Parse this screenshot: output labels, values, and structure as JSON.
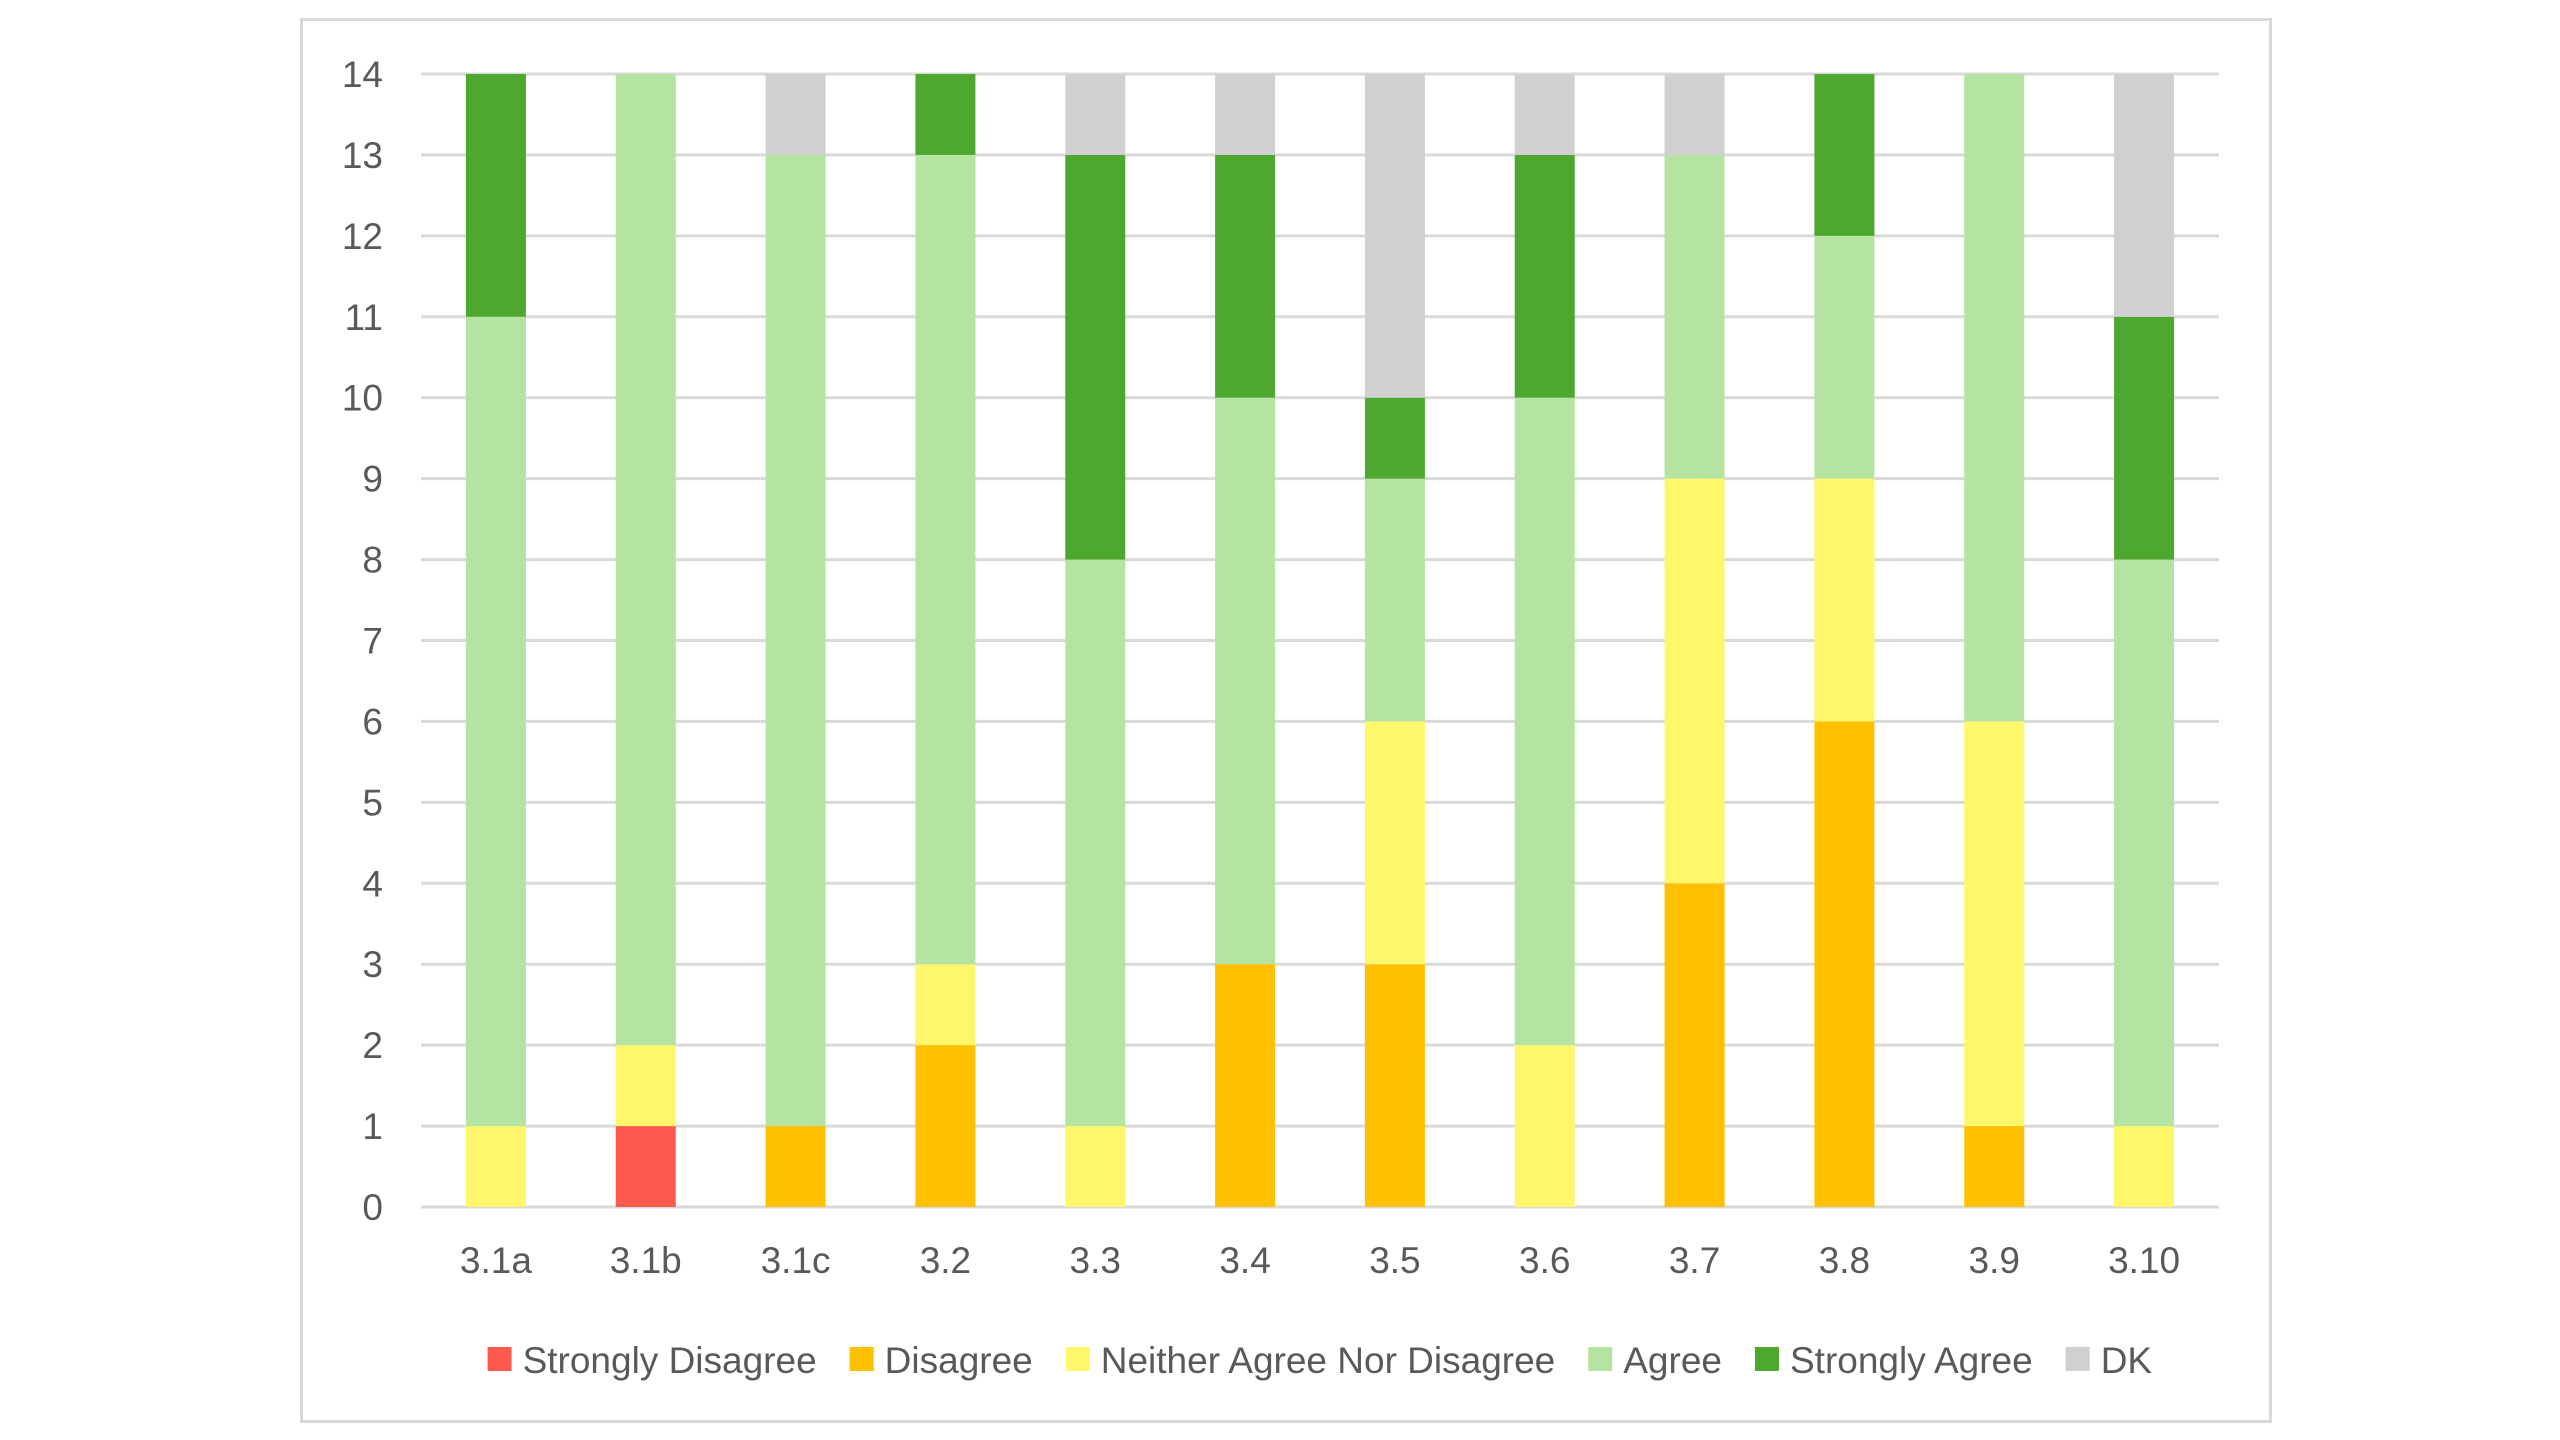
{
  "chart_data": {
    "type": "bar",
    "stacked": true,
    "categories": [
      "3.1a",
      "3.1b",
      "3.1c",
      "3.2",
      "3.3",
      "3.4",
      "3.5",
      "3.6",
      "3.7",
      "3.8",
      "3.9",
      "3.10"
    ],
    "series": [
      {
        "name": "Strongly Disagree",
        "color": "#ff5a4e",
        "values": [
          0,
          1,
          0,
          0,
          0,
          0,
          0,
          0,
          0,
          0,
          0,
          0
        ]
      },
      {
        "name": "Disagree",
        "color": "#ffc000",
        "values": [
          0,
          0,
          1,
          2,
          0,
          3,
          3,
          0,
          4,
          6,
          1,
          0
        ]
      },
      {
        "name": "Neither Agree Nor Disagree",
        "color": "#fff76b",
        "values": [
          1,
          1,
          0,
          1,
          1,
          0,
          3,
          2,
          5,
          3,
          5,
          1
        ]
      },
      {
        "name": "Agree",
        "color": "#b5e4a2",
        "values": [
          10,
          12,
          12,
          10,
          7,
          7,
          3,
          8,
          4,
          3,
          8,
          7
        ]
      },
      {
        "name": "Strongly Agree",
        "color": "#4ea72e",
        "values": [
          3,
          0,
          0,
          1,
          5,
          3,
          1,
          3,
          0,
          2,
          0,
          3
        ]
      },
      {
        "name": "DK",
        "color": "#d0d0d0",
        "values": [
          0,
          0,
          1,
          0,
          1,
          1,
          4,
          1,
          1,
          0,
          0,
          3
        ]
      }
    ],
    "y_ticks": [
      "0",
      "1",
      "2",
      "3",
      "4",
      "5",
      "6",
      "7",
      "8",
      "9",
      "10",
      "11",
      "12",
      "13",
      "14"
    ],
    "ylim": [
      0,
      14
    ],
    "grid": true,
    "legend_position": "bottom",
    "title": "",
    "xlabel": "",
    "ylabel": ""
  }
}
